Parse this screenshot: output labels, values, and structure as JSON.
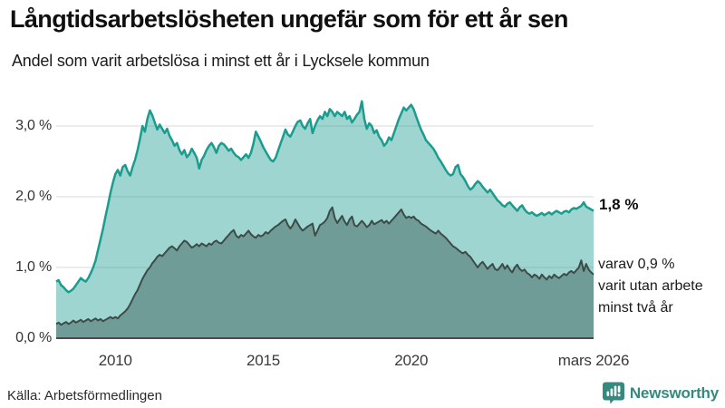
{
  "header": {
    "title": "Långtidsarbetslösheten ungefär som för ett år sen",
    "subtitle": "Andel som varit arbetslösa i minst ett år i Lycksele kommun"
  },
  "footer": {
    "source": "Källa: Arbetsförmedlingen",
    "brand": "Newsworthy"
  },
  "colors": {
    "line_1yr": "#1a9c8e",
    "fill_1yr": "rgba(26,156,142,0.42)",
    "line_2yr": "#3d4b48",
    "fill_2yr": "#6f9c96",
    "gridline": "#d9d9d9",
    "baseline": "#4a4a4a",
    "brand_teal": "#35897f"
  },
  "chart_data": {
    "type": "area",
    "title": "Långtidsarbetslösheten ungefär som för ett år sen",
    "subtitle": "Andel som varit arbetslösa i minst ett år i Lycksele kommun",
    "unit": "%",
    "frequency": "monthly",
    "x_start": "2008-01",
    "x_end": "2026-03",
    "ylim": [
      0,
      3.5
    ],
    "grid": true,
    "yticks": [
      {
        "v": 0,
        "label": "0,0 %"
      },
      {
        "v": 1,
        "label": "1,0 %"
      },
      {
        "v": 2,
        "label": "2,0 %"
      },
      {
        "v": 3,
        "label": "3,0 %"
      }
    ],
    "xticks": [
      {
        "m": 24,
        "label": "2010"
      },
      {
        "m": 84,
        "label": "2015"
      },
      {
        "m": 144,
        "label": "2020"
      },
      {
        "m": 218,
        "label": "mars 2026"
      }
    ],
    "series": [
      {
        "id": "minst_ett_ar",
        "end_label": "1,8 %",
        "end_value": 1.8,
        "values": [
          0.8,
          0.82,
          0.75,
          0.72,
          0.68,
          0.65,
          0.67,
          0.7,
          0.75,
          0.8,
          0.85,
          0.82,
          0.8,
          0.85,
          0.92,
          1.0,
          1.1,
          1.25,
          1.4,
          1.55,
          1.72,
          1.88,
          2.05,
          2.2,
          2.32,
          2.38,
          2.3,
          2.42,
          2.45,
          2.36,
          2.3,
          2.42,
          2.52,
          2.66,
          2.82,
          3.0,
          2.92,
          3.1,
          3.22,
          3.15,
          3.05,
          2.95,
          3.02,
          2.96,
          2.9,
          2.96,
          2.86,
          2.8,
          2.72,
          2.76,
          2.66,
          2.6,
          2.66,
          2.56,
          2.6,
          2.68,
          2.62,
          2.55,
          2.4,
          2.52,
          2.58,
          2.66,
          2.72,
          2.76,
          2.7,
          2.62,
          2.72,
          2.76,
          2.74,
          2.7,
          2.65,
          2.68,
          2.62,
          2.58,
          2.56,
          2.52,
          2.56,
          2.6,
          2.55,
          2.62,
          2.75,
          2.92,
          2.85,
          2.78,
          2.7,
          2.64,
          2.58,
          2.52,
          2.5,
          2.55,
          2.65,
          2.75,
          2.85,
          2.95,
          2.88,
          2.85,
          2.92,
          3.0,
          3.06,
          3.08,
          3.0,
          2.96,
          3.04,
          3.1,
          2.9,
          3.0,
          3.08,
          3.14,
          3.1,
          3.2,
          3.14,
          3.24,
          3.2,
          3.14,
          3.2,
          3.17,
          3.14,
          3.2,
          3.1,
          3.14,
          3.05,
          3.1,
          3.16,
          3.2,
          3.35,
          3.1,
          2.96,
          3.04,
          3.0,
          2.9,
          2.94,
          2.85,
          2.8,
          2.72,
          2.76,
          2.84,
          2.8,
          2.9,
          3.0,
          3.1,
          3.18,
          3.26,
          3.22,
          3.26,
          3.3,
          3.24,
          3.14,
          3.04,
          2.95,
          2.88,
          2.8,
          2.76,
          2.72,
          2.68,
          2.62,
          2.55,
          2.5,
          2.44,
          2.38,
          2.33,
          2.3,
          2.32,
          2.42,
          2.45,
          2.32,
          2.28,
          2.22,
          2.15,
          2.1,
          2.13,
          2.18,
          2.22,
          2.19,
          2.14,
          2.1,
          2.06,
          2.1,
          2.05,
          2.0,
          1.95,
          1.92,
          1.88,
          1.86,
          1.9,
          1.92,
          1.88,
          1.84,
          1.8,
          1.85,
          1.88,
          1.82,
          1.78,
          1.76,
          1.78,
          1.75,
          1.73,
          1.75,
          1.77,
          1.74,
          1.76,
          1.78,
          1.75,
          1.78,
          1.8,
          1.78,
          1.76,
          1.79,
          1.8,
          1.78,
          1.82,
          1.84,
          1.83,
          1.85,
          1.87,
          1.92,
          1.86,
          1.84,
          1.82,
          1.8
        ]
      },
      {
        "id": "minst_tva_ar",
        "end_label_lines": [
          "varav 0,9 %",
          "varit utan arbete",
          "minst två år"
        ],
        "end_value": 0.9,
        "values": [
          0.2,
          0.22,
          0.19,
          0.21,
          0.23,
          0.2,
          0.22,
          0.25,
          0.22,
          0.24,
          0.26,
          0.23,
          0.25,
          0.27,
          0.24,
          0.26,
          0.28,
          0.25,
          0.27,
          0.24,
          0.26,
          0.28,
          0.3,
          0.28,
          0.3,
          0.28,
          0.32,
          0.35,
          0.38,
          0.42,
          0.48,
          0.55,
          0.62,
          0.68,
          0.76,
          0.84,
          0.9,
          0.96,
          1.0,
          1.06,
          1.1,
          1.15,
          1.18,
          1.16,
          1.2,
          1.24,
          1.28,
          1.3,
          1.27,
          1.24,
          1.3,
          1.34,
          1.38,
          1.36,
          1.32,
          1.28,
          1.3,
          1.33,
          1.3,
          1.34,
          1.32,
          1.3,
          1.34,
          1.32,
          1.36,
          1.38,
          1.35,
          1.34,
          1.38,
          1.42,
          1.46,
          1.5,
          1.53,
          1.45,
          1.42,
          1.46,
          1.44,
          1.48,
          1.52,
          1.47,
          1.44,
          1.42,
          1.46,
          1.44,
          1.46,
          1.5,
          1.48,
          1.52,
          1.55,
          1.58,
          1.6,
          1.63,
          1.66,
          1.68,
          1.6,
          1.55,
          1.6,
          1.68,
          1.62,
          1.56,
          1.52,
          1.55,
          1.58,
          1.6,
          1.62,
          1.45,
          1.52,
          1.6,
          1.62,
          1.65,
          1.7,
          1.8,
          1.85,
          1.7,
          1.63,
          1.68,
          1.73,
          1.65,
          1.6,
          1.68,
          1.72,
          1.6,
          1.58,
          1.62,
          1.66,
          1.62,
          1.57,
          1.6,
          1.66,
          1.61,
          1.63,
          1.65,
          1.67,
          1.63,
          1.66,
          1.62,
          1.66,
          1.7,
          1.74,
          1.78,
          1.82,
          1.75,
          1.7,
          1.72,
          1.7,
          1.72,
          1.68,
          1.66,
          1.62,
          1.6,
          1.58,
          1.55,
          1.52,
          1.5,
          1.48,
          1.52,
          1.48,
          1.45,
          1.42,
          1.38,
          1.34,
          1.3,
          1.28,
          1.25,
          1.22,
          1.2,
          1.22,
          1.18,
          1.15,
          1.1,
          1.05,
          1.0,
          1.05,
          1.08,
          1.03,
          0.98,
          1.02,
          1.05,
          0.98,
          0.96,
          1.0,
          1.05,
          0.98,
          1.03,
          0.97,
          0.93,
          1.0,
          1.04,
          0.98,
          0.95,
          0.97,
          0.92,
          0.9,
          0.86,
          0.9,
          0.88,
          0.84,
          0.9,
          0.86,
          0.83,
          0.88,
          0.85,
          0.9,
          0.87,
          0.85,
          0.88,
          0.91,
          0.89,
          0.93,
          0.95,
          0.92,
          0.96,
          1.0,
          1.1,
          0.95,
          1.05,
          0.97,
          0.93,
          0.9
        ]
      }
    ]
  }
}
